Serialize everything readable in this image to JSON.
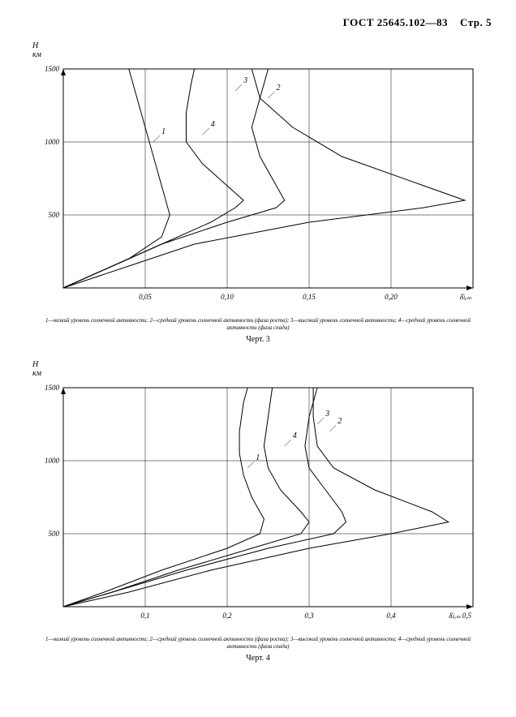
{
  "header": {
    "standard": "ГОСТ 25645.102—83",
    "page": "Стр. 5"
  },
  "chart3": {
    "type": "line",
    "y_axis_label": "H\nкм",
    "y_ticks": [
      0,
      500,
      1000,
      1500
    ],
    "x_ticks": [
      "0,05",
      "0,10",
      "0,15",
      "0,20"
    ],
    "x_axis_label_end": "δ̄ₗₑₘ",
    "ylim": [
      0,
      1500
    ],
    "xlim": [
      0,
      0.25
    ],
    "line_color": "#000000",
    "grid_color": "#000000",
    "background_color": "#ffffff",
    "line_width": 1,
    "grid_line_width": 0.5,
    "curve_labels": [
      "1",
      "2",
      "3",
      "4"
    ],
    "series": {
      "1": [
        [
          0,
          0
        ],
        [
          0.02,
          100
        ],
        [
          0.04,
          200
        ],
        [
          0.06,
          350
        ],
        [
          0.065,
          500
        ],
        [
          0.06,
          700
        ],
        [
          0.055,
          900
        ],
        [
          0.05,
          1100
        ],
        [
          0.045,
          1300
        ],
        [
          0.04,
          1500
        ]
      ],
      "2": [
        [
          0,
          0
        ],
        [
          0.03,
          150
        ],
        [
          0.06,
          300
        ],
        [
          0.1,
          450
        ],
        [
          0.13,
          550
        ],
        [
          0.135,
          600
        ],
        [
          0.13,
          700
        ],
        [
          0.12,
          900
        ],
        [
          0.115,
          1100
        ],
        [
          0.12,
          1300
        ],
        [
          0.125,
          1500
        ]
      ],
      "3": [
        [
          0,
          0
        ],
        [
          0.04,
          150
        ],
        [
          0.08,
          300
        ],
        [
          0.15,
          450
        ],
        [
          0.22,
          550
        ],
        [
          0.245,
          600
        ],
        [
          0.22,
          700
        ],
        [
          0.17,
          900
        ],
        [
          0.14,
          1100
        ],
        [
          0.12,
          1300
        ],
        [
          0.115,
          1500
        ]
      ],
      "4": [
        [
          0,
          0
        ],
        [
          0.03,
          150
        ],
        [
          0.06,
          300
        ],
        [
          0.09,
          450
        ],
        [
          0.105,
          550
        ],
        [
          0.11,
          600
        ],
        [
          0.1,
          700
        ],
        [
          0.085,
          850
        ],
        [
          0.075,
          1000
        ],
        [
          0.075,
          1200
        ],
        [
          0.078,
          1400
        ],
        [
          0.08,
          1500
        ]
      ]
    },
    "caption": "1—низкий уровень солнечной активности; 2—средний уровень солнечной активности (фаза роста); 3—высокий уровень солнечной активности; 4—средний уровень солнечной активности (фаза спада)",
    "fig_label": "Черт. 3"
  },
  "chart4": {
    "type": "line",
    "y_axis_label": "H\nкм",
    "y_ticks": [
      0,
      500,
      1000,
      1500
    ],
    "x_ticks": [
      "0,1",
      "0,2",
      "0,3",
      "0,4"
    ],
    "x_axis_label_end": "δ̄ₗₑₘ 0,5",
    "ylim": [
      0,
      1500
    ],
    "xlim": [
      0,
      0.5
    ],
    "line_color": "#000000",
    "grid_color": "#000000",
    "background_color": "#ffffff",
    "line_width": 1,
    "grid_line_width": 0.5,
    "curve_labels": [
      "1",
      "2",
      "3",
      "4"
    ],
    "series": {
      "1": [
        [
          0,
          0
        ],
        [
          0.05,
          100
        ],
        [
          0.12,
          250
        ],
        [
          0.2,
          400
        ],
        [
          0.24,
          500
        ],
        [
          0.245,
          600
        ],
        [
          0.23,
          750
        ],
        [
          0.22,
          900
        ],
        [
          0.215,
          1050
        ],
        [
          0.215,
          1200
        ],
        [
          0.22,
          1400
        ],
        [
          0.225,
          1500
        ]
      ],
      "2": [
        [
          0,
          0
        ],
        [
          0.06,
          100
        ],
        [
          0.15,
          250
        ],
        [
          0.25,
          400
        ],
        [
          0.33,
          500
        ],
        [
          0.345,
          580
        ],
        [
          0.34,
          650
        ],
        [
          0.32,
          800
        ],
        [
          0.3,
          950
        ],
        [
          0.295,
          1100
        ],
        [
          0.3,
          1300
        ],
        [
          0.31,
          1500
        ]
      ],
      "3": [
        [
          0,
          0
        ],
        [
          0.08,
          100
        ],
        [
          0.18,
          250
        ],
        [
          0.3,
          400
        ],
        [
          0.4,
          500
        ],
        [
          0.47,
          580
        ],
        [
          0.45,
          650
        ],
        [
          0.38,
          800
        ],
        [
          0.33,
          950
        ],
        [
          0.31,
          1100
        ],
        [
          0.305,
          1300
        ],
        [
          0.305,
          1500
        ]
      ],
      "4": [
        [
          0,
          0
        ],
        [
          0.06,
          100
        ],
        [
          0.14,
          250
        ],
        [
          0.23,
          400
        ],
        [
          0.29,
          500
        ],
        [
          0.3,
          580
        ],
        [
          0.29,
          650
        ],
        [
          0.265,
          800
        ],
        [
          0.25,
          950
        ],
        [
          0.245,
          1100
        ],
        [
          0.25,
          1300
        ],
        [
          0.255,
          1500
        ]
      ]
    },
    "caption": "1—низкий уровень солнечной активности; 2—средний уровень солнечной активности (фаза роста); 3—высокий уровень солнечной активности; 4—средний уровень солнечной активности (фаза спада)",
    "fig_label": "Черт. 4"
  }
}
